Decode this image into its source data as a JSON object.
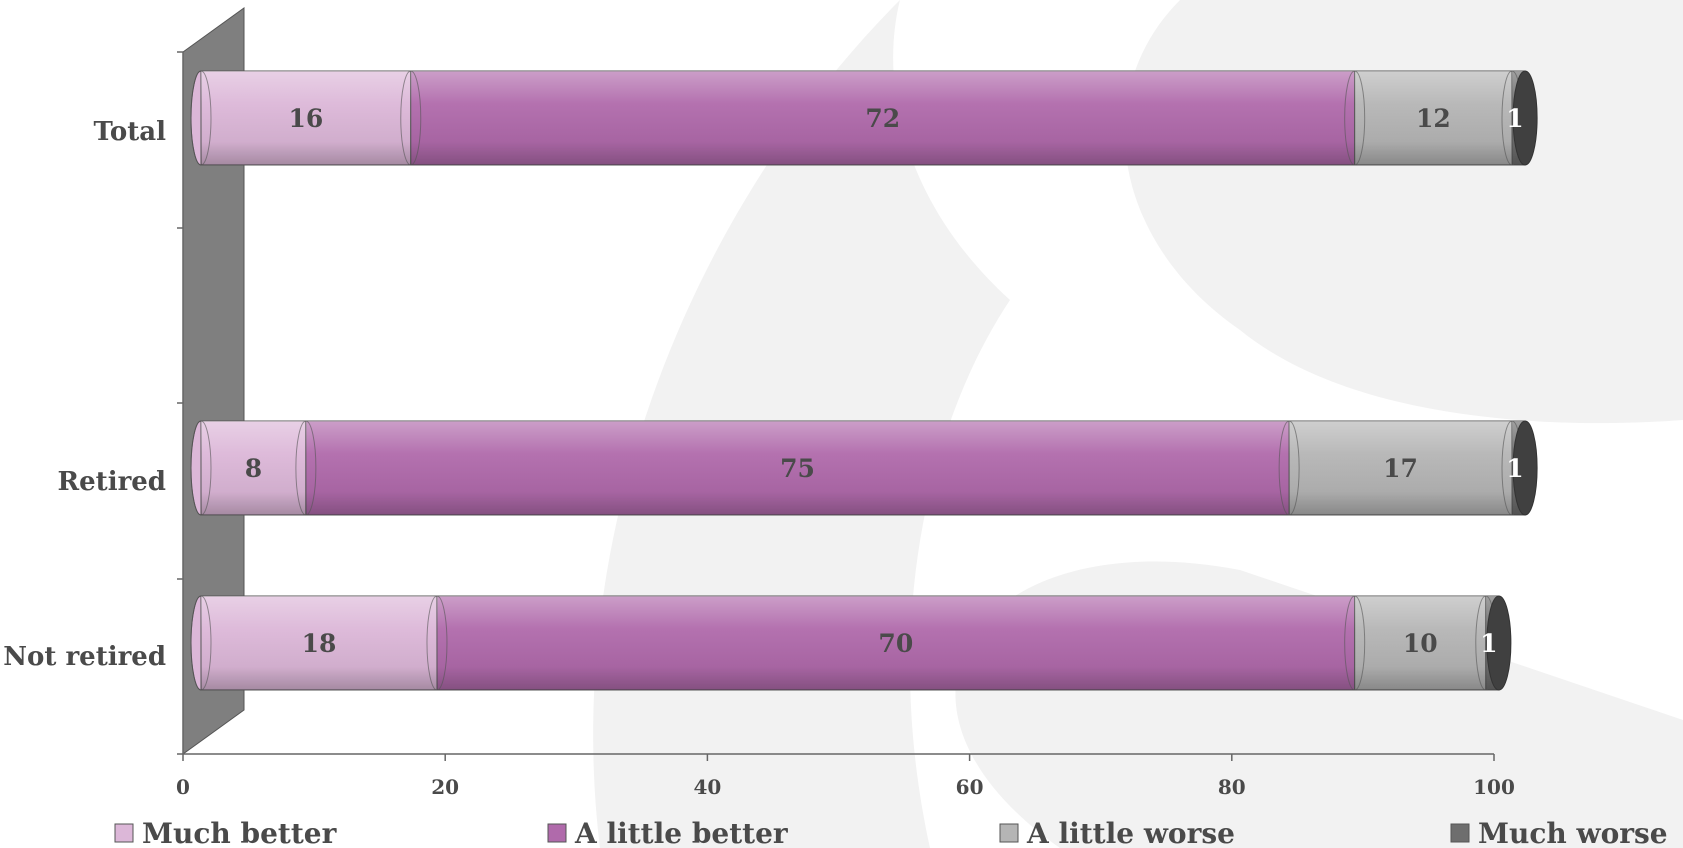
{
  "chart_data": {
    "type": "bar",
    "orientation": "horizontal",
    "stacked": true,
    "style": "3d-cylinder",
    "categories": [
      "Total",
      "Retired",
      "Not retired"
    ],
    "series": [
      {
        "name": "Much better",
        "values": [
          16,
          8,
          18
        ],
        "color": "#dcb7d8"
      },
      {
        "name": "A little better",
        "values": [
          72,
          75,
          70
        ],
        "color": "#b06aab"
      },
      {
        "name": "A little worse",
        "values": [
          12,
          17,
          10
        ],
        "color": "#b5b5b5"
      },
      {
        "name": "Much worse",
        "values": [
          1,
          1,
          1
        ],
        "color": "#6e6e6e"
      }
    ],
    "xlim": [
      0,
      100
    ],
    "xticks": [
      "0",
      "20",
      "40",
      "60",
      "80",
      "100"
    ],
    "title": "",
    "xlabel": "",
    "ylabel": "",
    "grid": false,
    "legend_position": "bottom"
  }
}
